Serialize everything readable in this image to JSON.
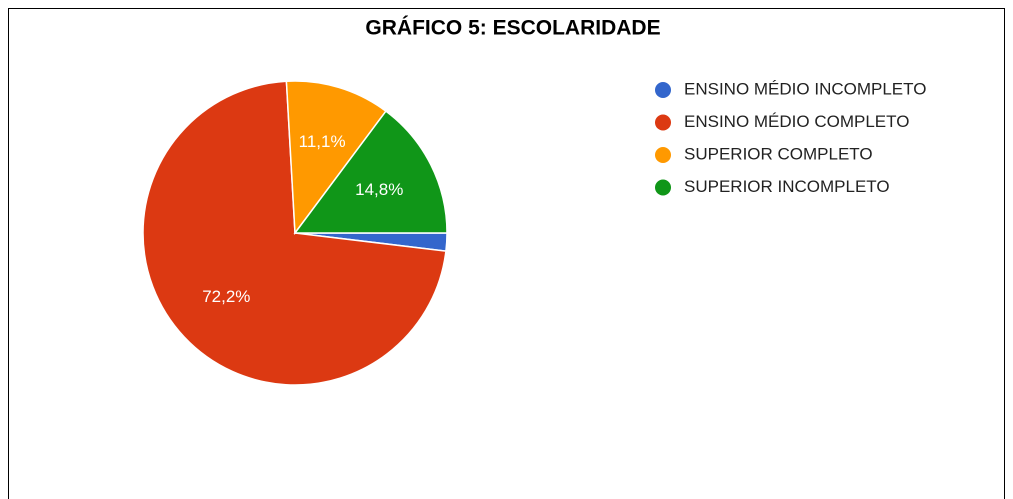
{
  "chart_data": {
    "type": "pie",
    "title": "GRÁFICO 5: ESCOLARIDADE",
    "categories": [
      "ENSINO MÉDIO INCOMPLETO",
      "ENSINO MÉDIO COMPLETO",
      "SUPERIOR COMPLETO",
      "SUPERIOR INCOMPLETO"
    ],
    "values": [
      1.9,
      72.2,
      11.1,
      14.8
    ],
    "value_labels": [
      null,
      "72,2%",
      "11,1%",
      "14,8%"
    ],
    "colors": [
      "#3366cc",
      "#dc3912",
      "#ff9900",
      "#109618"
    ]
  }
}
